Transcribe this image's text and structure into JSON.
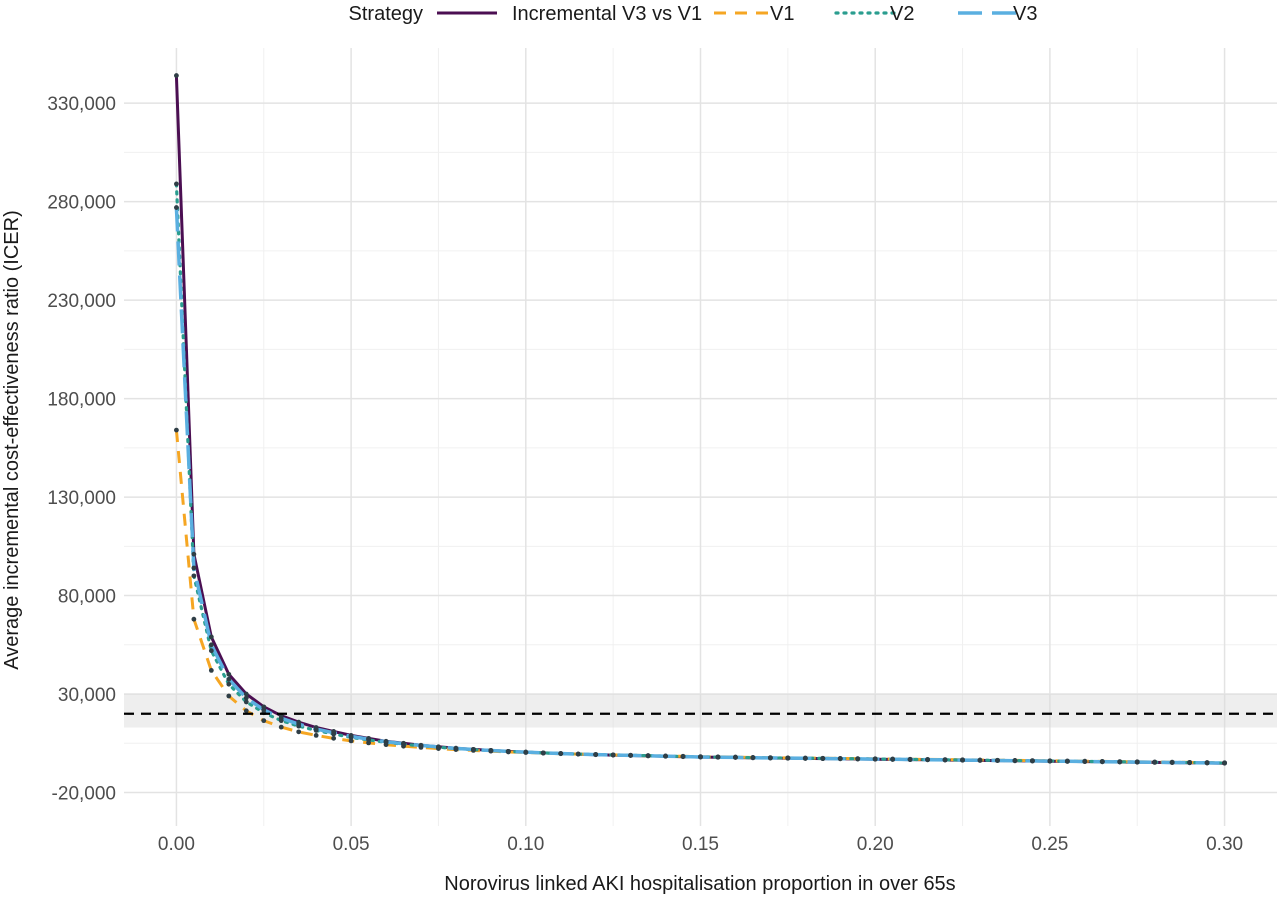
{
  "chart_data": {
    "type": "line",
    "title": "",
    "xlabel": "Norovirus linked AKI hospitalisation proportion in over 65s",
    "ylabel": "Average incremental cost-effectiveness ratio (ICER)",
    "xlim": [
      -0.015,
      0.315
    ],
    "ylim": [
      -37000,
      358000
    ],
    "x_ticks": [
      0.0,
      0.05,
      0.1,
      0.15,
      0.2,
      0.25,
      0.3
    ],
    "x_tick_labels": [
      "0.00",
      "0.05",
      "0.10",
      "0.15",
      "0.20",
      "0.25",
      "0.30"
    ],
    "y_ticks": [
      -20000,
      30000,
      80000,
      130000,
      180000,
      230000,
      280000,
      330000
    ],
    "y_tick_labels": [
      "-20,000",
      "30,000",
      "80,000",
      "130,000",
      "180,000",
      "230,000",
      "280,000",
      "330,000"
    ],
    "grid": true,
    "legend": {
      "position": "top",
      "title": "Strategy"
    },
    "threshold_line": 20000,
    "threshold_band": [
      13000,
      30000
    ],
    "x": [
      0.0,
      0.005,
      0.01,
      0.015,
      0.02,
      0.025,
      0.03,
      0.035,
      0.04,
      0.045,
      0.05,
      0.055,
      0.06,
      0.065,
      0.07,
      0.075,
      0.08,
      0.085,
      0.09,
      0.095,
      0.1,
      0.105,
      0.11,
      0.115,
      0.12,
      0.125,
      0.13,
      0.135,
      0.14,
      0.145,
      0.15,
      0.155,
      0.16,
      0.165,
      0.17,
      0.175,
      0.18,
      0.185,
      0.19,
      0.195,
      0.2,
      0.205,
      0.21,
      0.215,
      0.22,
      0.225,
      0.23,
      0.235,
      0.24,
      0.245,
      0.25,
      0.255,
      0.26,
      0.265,
      0.27,
      0.275,
      0.28,
      0.285,
      0.29,
      0.295,
      0.3
    ],
    "series": [
      {
        "name": "Incremental V3 vs V1",
        "color": "#4b0f52",
        "dash": "solid",
        "values": [
          344000,
          101000,
          59000,
          40000,
          30000,
          23500,
          19000,
          15700,
          13000,
          11000,
          9000,
          7500,
          6000,
          5000,
          4000,
          3200,
          2500,
          1900,
          1400,
          900,
          500,
          100,
          -200,
          -500,
          -800,
          -1000,
          -1200,
          -1400,
          -1600,
          -1800,
          -2000,
          -2100,
          -2200,
          -2400,
          -2500,
          -2600,
          -2700,
          -2800,
          -2900,
          -3000,
          -3100,
          -3200,
          -3300,
          -3400,
          -3500,
          -3600,
          -3700,
          -3800,
          -3900,
          -4000,
          -4100,
          -4200,
          -4300,
          -4400,
          -4500,
          -4600,
          -4700,
          -4800,
          -4900,
          -5000,
          -5100
        ]
      },
      {
        "name": "V1",
        "color": "#f5a623",
        "dash": "dashed",
        "values": [
          164000,
          68000,
          42000,
          29000,
          21500,
          16500,
          13200,
          10800,
          9000,
          7500,
          6200,
          5200,
          4300,
          3500,
          2900,
          2300,
          1800,
          1400,
          1000,
          600,
          300,
          0,
          -300,
          -500,
          -700,
          -900,
          -1100,
          -1300,
          -1500,
          -1600,
          -1800,
          -1900,
          -2000,
          -2200,
          -2300,
          -2400,
          -2500,
          -2600,
          -2700,
          -2800,
          -2900,
          -3000,
          -3100,
          -3200,
          -3300,
          -3400,
          -3500,
          -3600,
          -3700,
          -3800,
          -3900,
          -4000,
          -4100,
          -4200,
          -4300,
          -4400,
          -4500,
          -4600,
          -4700,
          -4800,
          -4900
        ]
      },
      {
        "name": "V2",
        "color": "#2a9d8f",
        "dash": "dotted",
        "values": [
          289000,
          90000,
          52000,
          35000,
          26000,
          20500,
          16500,
          13700,
          11500,
          9700,
          8000,
          6700,
          5500,
          4500,
          3700,
          3000,
          2300,
          1800,
          1300,
          900,
          500,
          100,
          -200,
          -500,
          -700,
          -900,
          -1100,
          -1300,
          -1500,
          -1700,
          -1900,
          -2000,
          -2100,
          -2300,
          -2400,
          -2500,
          -2600,
          -2700,
          -2800,
          -2900,
          -3000,
          -3100,
          -3200,
          -3300,
          -3400,
          -3500,
          -3600,
          -3700,
          -3800,
          -3900,
          -4000,
          -4100,
          -4200,
          -4300,
          -4400,
          -4500,
          -4600,
          -4700,
          -4800,
          -4900,
          -5000
        ]
      },
      {
        "name": "V3",
        "color": "#5aafe0",
        "dash": "longdash",
        "values": [
          277000,
          94000,
          55000,
          37500,
          28000,
          22000,
          17800,
          14700,
          12200,
          10300,
          8500,
          7100,
          5800,
          4800,
          3900,
          3100,
          2400,
          1850,
          1350,
          900,
          500,
          100,
          -200,
          -500,
          -750,
          -950,
          -1150,
          -1350,
          -1550,
          -1750,
          -1950,
          -2050,
          -2150,
          -2350,
          -2450,
          -2550,
          -2650,
          -2750,
          -2850,
          -2950,
          -3050,
          -3150,
          -3250,
          -3350,
          -3450,
          -3550,
          -3650,
          -3750,
          -3850,
          -3950,
          -4050,
          -4150,
          -4250,
          -4350,
          -4450,
          -4550,
          -4650,
          -4750,
          -4850,
          -4950,
          -5050
        ]
      }
    ]
  }
}
